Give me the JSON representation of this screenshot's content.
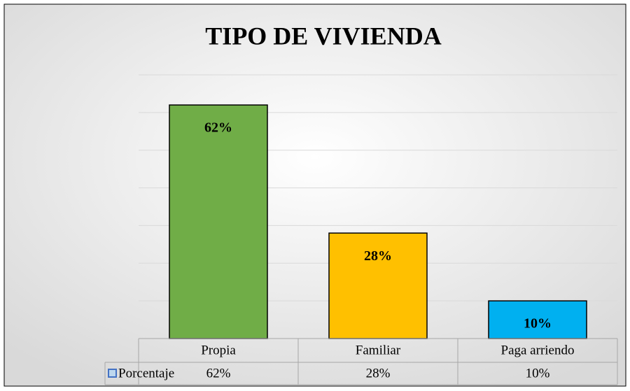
{
  "chart_data": {
    "type": "bar",
    "title": "TIPO DE VIVIENDA",
    "categories": [
      "Propia",
      "Familiar",
      "Paga arriendo"
    ],
    "series": [
      {
        "name": "Porcentaje",
        "color": "#4472c4",
        "values": [
          62,
          28,
          10
        ],
        "value_labels": [
          "62%",
          "28%",
          "10%"
        ],
        "colors": [
          "#70ad47",
          "#ffc000",
          "#00b0f0"
        ]
      }
    ],
    "ylim": [
      0,
      70
    ],
    "yticks": [
      0,
      10,
      20,
      30,
      40,
      50,
      60,
      70
    ],
    "grid": true,
    "data_table": true
  }
}
